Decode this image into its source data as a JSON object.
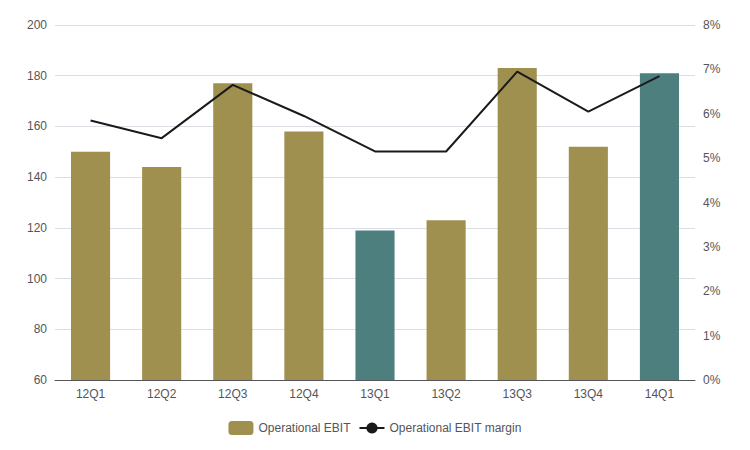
{
  "chart_data": {
    "type": "bar",
    "categories": [
      "12Q1",
      "12Q2",
      "12Q3",
      "12Q4",
      "13Q1",
      "13Q2",
      "13Q3",
      "13Q4",
      "14Q1"
    ],
    "series": [
      {
        "name": "Operational EBIT",
        "type": "bar",
        "color": "#a09050",
        "colors": [
          "#a09050",
          "#a09050",
          "#a09050",
          "#a09050",
          "#4d7f7f",
          "#a09050",
          "#a09050",
          "#a09050",
          "#4d7f7f"
        ],
        "values": [
          150,
          144,
          177,
          158,
          119,
          123,
          183,
          152,
          181
        ]
      },
      {
        "name": "Operational EBIT margin",
        "type": "line",
        "color": "#1a1a1a",
        "axis": "y2",
        "values": [
          5.85,
          5.45,
          6.65,
          5.95,
          5.15,
          5.15,
          6.95,
          6.05,
          6.85
        ]
      }
    ],
    "ylim": [
      60,
      200
    ],
    "yticks": [
      60,
      80,
      100,
      120,
      140,
      160,
      180,
      200
    ],
    "y2lim": [
      0,
      8
    ],
    "y2ticks": [
      {
        "value": 0,
        "label": "0%"
      },
      {
        "value": 1,
        "label": "1%"
      },
      {
        "value": 2,
        "label": "2%"
      },
      {
        "value": 3,
        "label": "3%"
      },
      {
        "value": 4,
        "label": "4%"
      },
      {
        "value": 5,
        "label": "5%"
      },
      {
        "value": 6,
        "label": "6%"
      },
      {
        "value": 7,
        "label": "7%"
      },
      {
        "value": 8,
        "label": "8%"
      }
    ],
    "grid": true,
    "legend": "bottom"
  }
}
